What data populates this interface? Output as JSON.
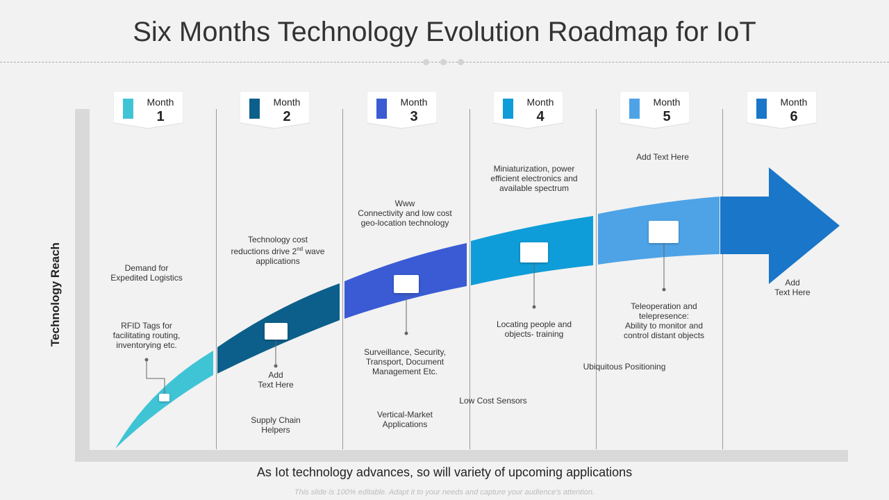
{
  "title": "Six Months Technology Evolution Roadmap for IoT",
  "y_axis_label": "Technology Reach",
  "x_axis_label": "As Iot technology advances, so will variety of upcoming applications",
  "footer": "This slide is 100% editable. Adapt it to your needs and capture your audience's attention.",
  "months": [
    {
      "label": "Month",
      "number": "1",
      "color": "#3fc4d6"
    },
    {
      "label": "Month",
      "number": "2",
      "color": "#0c5f8a"
    },
    {
      "label": "Month",
      "number": "3",
      "color": "#3a5bd4"
    },
    {
      "label": "Month",
      "number": "4",
      "color": "#0e9dd8"
    },
    {
      "label": "Month",
      "number": "5",
      "color": "#4ea3e6"
    },
    {
      "label": "Month",
      "number": "6",
      "color": "#1976c8"
    }
  ],
  "segment_colors": [
    "#3fc4d6",
    "#0c5f8a",
    "#3a5bd4",
    "#0e9dd8",
    "#4ea3e6",
    "#1976c8"
  ],
  "texts": {
    "demand": [
      "Demand for",
      "Expedited Logistics"
    ],
    "rfid": [
      "RFID Tags for",
      "facilitating routing,",
      "inventorying etc."
    ],
    "tech_cost": [
      "Technology cost",
      "reductions drive 2",
      "nd",
      " wave",
      "applications"
    ],
    "add_text_2": [
      "Add",
      "Text Here"
    ],
    "supply_chain": [
      "Supply Chain",
      "Helpers"
    ],
    "www": [
      "Www",
      "Connectivity and low cost",
      "geo-location technology"
    ],
    "surveillance": [
      "Surveillance, Security,",
      "Transport, Document",
      "Management Etc."
    ],
    "vertical_market": [
      "Vertical-Market",
      "Applications"
    ],
    "miniaturization": [
      "Miniaturization, power",
      "efficient electronics and",
      "available spectrum"
    ],
    "locating": [
      "Locating people and",
      "objects- training"
    ],
    "low_cost_sensors": "Low Cost Sensors",
    "add_text_5": "Add Text Here",
    "teleoperation": [
      "Teleoperation and",
      "telepresence:",
      "Ability to monitor and",
      "control distant objects"
    ],
    "ubiquitous": "Ubiquitous Positioning",
    "add_text_6": [
      "Add",
      "Text Here"
    ]
  }
}
